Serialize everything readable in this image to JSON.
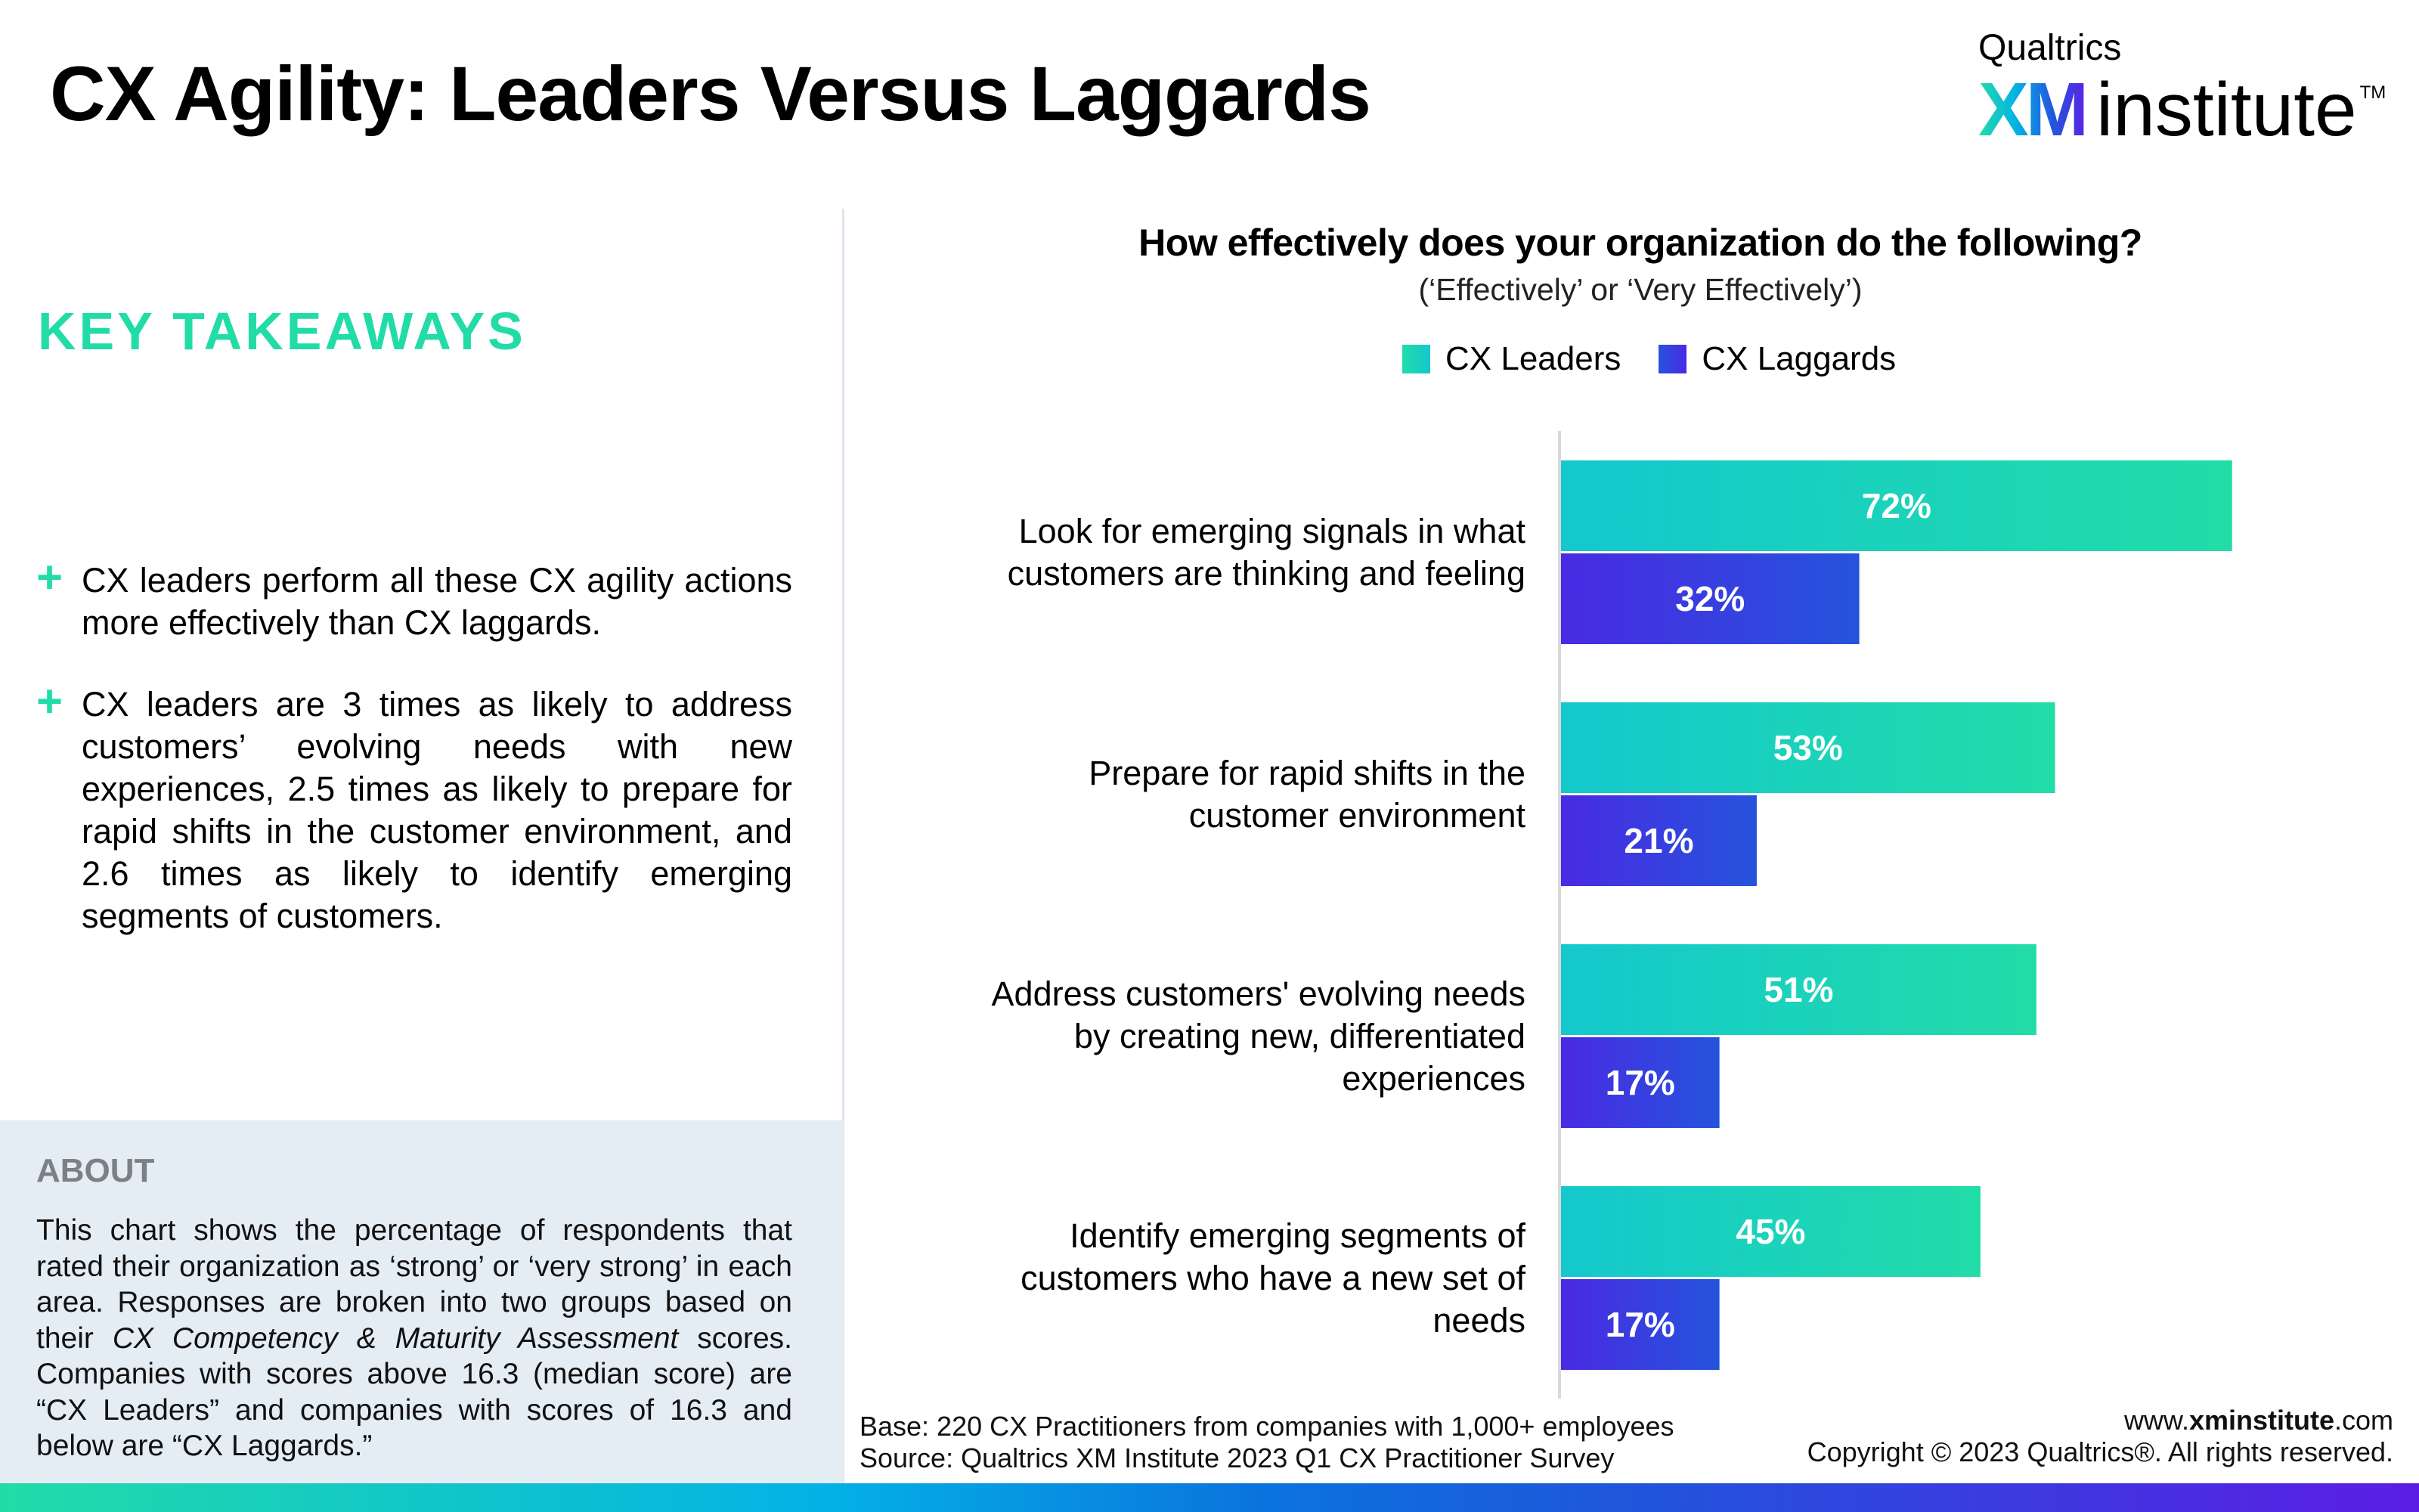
{
  "header": {
    "title": "CX Agility: Leaders Versus Laggards",
    "logo": {
      "top": "Qualtrics",
      "xm": "XM",
      "institute": "institute",
      "tm": "TM"
    }
  },
  "key_takeaways": {
    "heading": "KEY TAKEAWAYS",
    "bullet_icon": "plus-icon",
    "bullet_symbol": "+",
    "bullets": [
      "CX leaders perform all these CX agility actions more effectively than CX laggards.",
      "CX leaders are 3 times as likely to address customers’ evolving needs with new experiences, 2.5 times as likely to prepare for rapid shifts in the customer environment, and 2.6 times as likely to identify emerging segments of customers."
    ]
  },
  "about": {
    "heading": "ABOUT",
    "text_part1": "This chart shows the percentage of respondents that rated their organization as ‘strong’ or ‘very strong’ in each area. Responses are broken into two groups based on their ",
    "text_italic": "CX Competency & Maturity Assessment",
    "text_part2": " scores. Companies with scores above 16.3 (median score) are “CX Leaders” and companies with scores of 16.3 and below  are “CX Laggards.”"
  },
  "footer": {
    "base": "Base: 220 CX Practitioners from companies with 1,000+ employees",
    "source": "Source: Qualtrics XM Institute 2023 Q1 CX Practitioner Survey",
    "url_prefix": "www.",
    "url_bold": "xminstitute",
    "url_suffix": ".com",
    "copyright": "Copyright © 2023 Qualtrics®. All rights reserved."
  },
  "colors": {
    "accent_green": "#22dca8",
    "leaders_start": "#14c8cd",
    "leaders_end": "#22dca8",
    "laggards_start": "#4a2ae3",
    "laggards_end": "#2553dc",
    "about_bg": "#e4ecf4",
    "about_heading": "#7c8084"
  },
  "chart_data": {
    "type": "bar",
    "orientation": "horizontal",
    "title": "How effectively does your organization do the following?",
    "subtitle": "(‘Effectively’ or ‘Very Effectively’)",
    "xlabel": "",
    "ylabel": "",
    "xlim": [
      0,
      100
    ],
    "grid": false,
    "legend_position": "top-center",
    "value_format": "percent",
    "categories": [
      "Look for emerging signals in what customers are thinking and feeling",
      "Prepare for rapid shifts in the customer environment",
      "Address customers' evolving needs by creating new, differentiated experiences",
      "Identify emerging segments of customers who have a new set of needs"
    ],
    "category_lines": [
      [
        "Look for emerging signals in what",
        "customers are thinking and feeling"
      ],
      [
        "Prepare for rapid shifts in the",
        "customer environment"
      ],
      [
        "Address customers' evolving needs",
        "by creating new, differentiated",
        "experiences"
      ],
      [
        "Identify emerging segments of",
        "customers who have a new set of",
        "needs"
      ]
    ],
    "series": [
      {
        "name": "CX Leaders",
        "values": [
          72,
          53,
          51,
          45
        ]
      },
      {
        "name": "CX Laggards",
        "values": [
          32,
          21,
          17,
          17
        ]
      }
    ]
  }
}
